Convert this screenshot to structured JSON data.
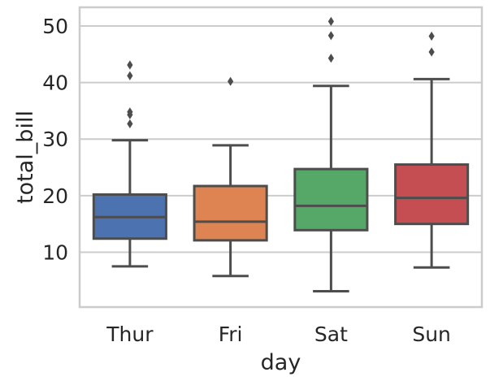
{
  "chart_data": {
    "type": "box",
    "title": "",
    "xlabel": "day",
    "ylabel": "total_bill",
    "categories": [
      "Thur",
      "Fri",
      "Sat",
      "Sun"
    ],
    "ylim": [
      0.3,
      53.3
    ],
    "yticks": [
      10,
      20,
      30,
      40,
      50
    ],
    "grid": "horizontal",
    "boxes": [
      {
        "category": "Thur",
        "color": "#4c72b0",
        "whisker_low": 7.5,
        "q1": 12.4,
        "median": 16.2,
        "q3": 20.2,
        "whisker_high": 29.8,
        "outliers": [
          32.7,
          34.3,
          34.8,
          41.2,
          43.1
        ]
      },
      {
        "category": "Fri",
        "color": "#dd8452",
        "whisker_low": 5.8,
        "q1": 12.1,
        "median": 15.4,
        "q3": 21.7,
        "whisker_high": 28.9,
        "outliers": [
          40.2
        ]
      },
      {
        "category": "Sat",
        "color": "#55a868",
        "whisker_low": 3.1,
        "q1": 13.9,
        "median": 18.2,
        "q3": 24.7,
        "whisker_high": 39.4,
        "outliers": [
          44.3,
          48.3,
          50.8
        ]
      },
      {
        "category": "Sun",
        "color": "#c44e52",
        "whisker_low": 7.3,
        "q1": 15.0,
        "median": 19.6,
        "q3": 25.5,
        "whisker_high": 40.6,
        "outliers": [
          45.4,
          48.2
        ]
      }
    ]
  }
}
